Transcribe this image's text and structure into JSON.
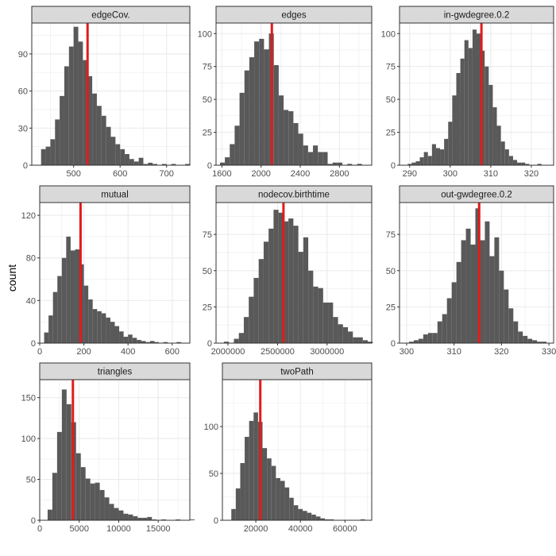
{
  "figure": {
    "ylabel": "count"
  },
  "colors": {
    "bar": "#595959",
    "vline": "#e41a1c",
    "strip": "#d9d9d9",
    "grid": "#ebebeb",
    "panel_border": "#333333",
    "tick_text": "#4d4d4d"
  },
  "chart_data": [
    {
      "type": "bar",
      "title": "edgeCov.",
      "xlabel": "",
      "ylabel": "count",
      "xlim": [
        410,
        750
      ],
      "ylim": [
        0,
        115
      ],
      "xticks": [
        500,
        600,
        700
      ],
      "yticks": [
        0,
        30,
        60,
        90
      ],
      "bin_start": 430,
      "bin_width": 10,
      "counts": [
        13,
        15,
        21,
        37,
        56,
        80,
        96,
        112,
        100,
        85,
        72,
        58,
        48,
        40,
        31,
        23,
        17,
        13,
        9,
        5,
        3,
        6,
        1,
        2,
        1,
        0,
        1,
        0,
        1,
        0,
        0,
        1,
        0
      ],
      "reference_line": 530
    },
    {
      "type": "bar",
      "title": "edges",
      "xlabel": "",
      "ylabel": "count",
      "xlim": [
        1540,
        3130
      ],
      "ylim": [
        0,
        108
      ],
      "xticks": [
        1600,
        2000,
        2400,
        2800
      ],
      "yticks": [
        0,
        25,
        50,
        75,
        100
      ],
      "bin_start": 1580,
      "bin_width": 50,
      "counts": [
        2,
        6,
        16,
        30,
        55,
        72,
        82,
        94,
        96,
        88,
        100,
        76,
        53,
        42,
        41,
        32,
        24,
        15,
        10,
        15,
        10,
        10,
        1,
        2,
        2,
        0,
        1,
        0,
        1,
        0
      ],
      "reference_line": 2110
    },
    {
      "type": "bar",
      "title": "in-gwdegree.0.2",
      "xlabel": "",
      "ylabel": "count",
      "xlim": [
        287.5,
        325.5
      ],
      "ylim": [
        0,
        108
      ],
      "xticks": [
        290,
        300,
        310,
        320
      ],
      "yticks": [
        0,
        25,
        50,
        75,
        100
      ],
      "bin_start": 289.5,
      "bin_width": 1,
      "counts": [
        1,
        2,
        3,
        6,
        10,
        7,
        16,
        13,
        12,
        20,
        33,
        53,
        70,
        81,
        95,
        89,
        103,
        100,
        87,
        75,
        61,
        44,
        30,
        18,
        12,
        7,
        4,
        2,
        2,
        1,
        0,
        0,
        1,
        0
      ],
      "reference_line": 307.7
    },
    {
      "type": "bar",
      "title": "mutual",
      "xlabel": "",
      "ylabel": "count",
      "xlim": [
        0,
        680
      ],
      "ylim": [
        0,
        132
      ],
      "xticks": [
        0,
        200,
        400,
        600
      ],
      "yticks": [
        0,
        40,
        80,
        120
      ],
      "bin_start": 20,
      "bin_width": 20,
      "counts": [
        10,
        26,
        48,
        63,
        80,
        100,
        87,
        88,
        74,
        54,
        41,
        32,
        30,
        28,
        24,
        20,
        16,
        11,
        6,
        8,
        5,
        3,
        2,
        1,
        2,
        1,
        0,
        1,
        0,
        0,
        1
      ],
      "reference_line": 185
    },
    {
      "type": "bar",
      "title": "nodecov.birthtime",
      "xlabel": "",
      "ylabel": "count",
      "xlim": [
        1880000,
        3450000
      ],
      "ylim": [
        0,
        97
      ],
      "xticks": [
        2000000,
        2500000,
        3000000
      ],
      "yticks": [
        0,
        25,
        50,
        75
      ],
      "bin_start": 1960000,
      "bin_width": 50000,
      "counts": [
        1,
        0,
        3,
        7,
        18,
        32,
        45,
        58,
        70,
        79,
        92,
        90,
        84,
        86,
        81,
        63,
        73,
        50,
        39,
        38,
        28,
        28,
        18,
        13,
        11,
        8,
        4,
        4,
        2,
        1
      ],
      "reference_line": 2560000
    },
    {
      "type": "bar",
      "title": "out-gwdegree.0.2",
      "xlabel": "",
      "ylabel": "count",
      "xlim": [
        298.5,
        331
      ],
      "ylim": [
        0,
        97
      ],
      "xticks": [
        300,
        310,
        320,
        330
      ],
      "yticks": [
        0,
        25,
        50,
        75
      ],
      "bin_start": 300.5,
      "bin_width": 1,
      "counts": [
        1,
        2,
        3,
        6,
        7,
        7,
        15,
        20,
        31,
        42,
        56,
        71,
        79,
        68,
        93,
        71,
        84,
        60,
        73,
        50,
        37,
        24,
        15,
        8,
        5,
        3,
        2,
        1,
        1
      ],
      "reference_line": 315.3
    },
    {
      "type": "bar",
      "title": "triangles",
      "xlabel": "",
      "ylabel": "count",
      "xlim": [
        0,
        19000
      ],
      "ylim": [
        0,
        172
      ],
      "xticks": [
        0,
        5000,
        10000,
        15000
      ],
      "yticks": [
        0,
        50,
        100,
        150
      ],
      "bin_start": 1000,
      "bin_width": 600,
      "counts": [
        13,
        58,
        108,
        160,
        142,
        120,
        82,
        65,
        51,
        45,
        46,
        37,
        28,
        20,
        15,
        12,
        8,
        7,
        5,
        3,
        3,
        4,
        1,
        0,
        1,
        0,
        0,
        1,
        0,
        0,
        1
      ],
      "reference_line": 4200
    },
    {
      "type": "bar",
      "title": "twoPath",
      "xlabel": "",
      "ylabel": "count",
      "xlim": [
        5000,
        72000
      ],
      "ylim": [
        0,
        150
      ],
      "xticks": [
        20000,
        40000,
        60000
      ],
      "yticks": [
        0,
        50,
        100
      ],
      "bin_start": 9000,
      "bin_width": 2000,
      "counts": [
        12,
        34,
        61,
        89,
        106,
        115,
        105,
        77,
        66,
        58,
        45,
        42,
        35,
        24,
        16,
        12,
        10,
        8,
        6,
        4,
        2,
        1,
        1,
        0,
        0,
        0,
        0,
        0,
        0,
        1
      ],
      "reference_line": 22000
    }
  ]
}
